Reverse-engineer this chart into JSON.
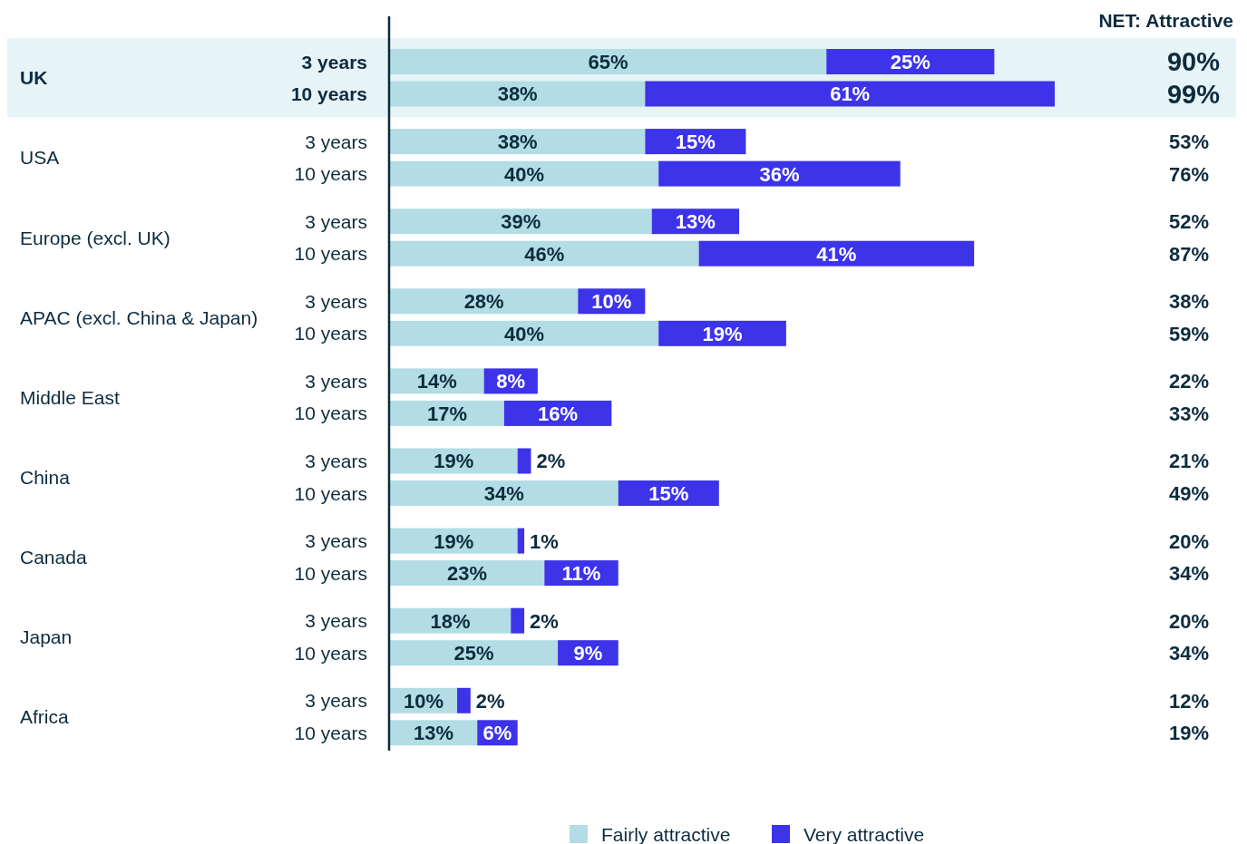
{
  "chart_data": {
    "type": "bar",
    "orientation": "horizontal",
    "stacked": true,
    "categories": [
      "3 years",
      "10 years",
      "3 years",
      "10 years",
      "3 years",
      "10 years",
      "3 years",
      "10 years",
      "3 years",
      "10 years",
      "3 years",
      "10 years",
      "3 years",
      "10 years",
      "3 years",
      "10 years",
      "3 years",
      "10 years"
    ],
    "annotations": [
      "UK",
      "USA",
      "Europe (excl. UK)",
      "APAC (excl. China & Japan)",
      "Middle East",
      "China",
      "Canada",
      "Japan",
      "Africa",
      "NET: Attractive",
      "90%",
      "99%",
      "53%",
      "76%",
      "52%",
      "87%",
      "38%",
      "59%",
      "22%",
      "33%",
      "21%",
      "49%",
      "20%",
      "34%",
      "20%",
      "34%",
      "12%",
      "19%"
    ],
    "series": [
      {
        "name": "Fairly attractive",
        "color": "#b3dce4",
        "values": [
          65,
          38,
          38,
          40,
          39,
          46,
          28,
          40,
          14,
          17,
          19,
          34,
          19,
          23,
          18,
          25,
          10,
          13
        ],
        "value_labels": [
          "65%",
          "38%",
          "38%",
          "40%",
          "39%",
          "46%",
          "28%",
          "40%",
          "14%",
          "17%",
          "19%",
          "34%",
          "19%",
          "23%",
          "18%",
          "25%",
          "10%",
          "13%"
        ]
      },
      {
        "name": "Very attractive",
        "color": "#3d33e8",
        "values": [
          25,
          61,
          15,
          36,
          13,
          41,
          10,
          19,
          8,
          16,
          2,
          15,
          1,
          11,
          2,
          9,
          2,
          6
        ],
        "value_labels": [
          "25%",
          "61%",
          "15%",
          "36%",
          "13%",
          "41%",
          "10%",
          "19%",
          "8%",
          "16%",
          "2%",
          "15%",
          "1%",
          "11%",
          "2%",
          "9%",
          "2%",
          "6%"
        ]
      }
    ],
    "tick_labels": "y",
    "legend": "bottom"
  }
}
